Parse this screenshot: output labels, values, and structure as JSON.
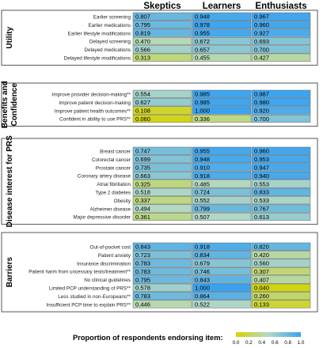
{
  "chart_data": {
    "type": "heatmap",
    "columns": [
      "Skeptics",
      "Learners",
      "Enthusiasts"
    ],
    "groups": [
      {
        "name": "Utility",
        "rows": [
          {
            "label": "Earlier screening",
            "values": [
              0.807,
              0.948,
              0.967
            ]
          },
          {
            "label": "Earlier medications",
            "values": [
              0.795,
              0.978,
              0.96
            ]
          },
          {
            "label": "Earlier lifestyle modifications",
            "values": [
              0.819,
              0.955,
              0.927
            ]
          },
          {
            "label": "Delayed screening",
            "values": [
              0.47,
              0.672,
              0.693
            ]
          },
          {
            "label": "Delayed medications",
            "values": [
              0.566,
              0.657,
              0.7
            ]
          },
          {
            "label": "Delayed lifestyle modifications",
            "values": [
              0.313,
              0.455,
              0.427
            ]
          }
        ]
      },
      {
        "name": "Benefits and Confidence",
        "rows": [
          {
            "label": "Improve provider decision-making**",
            "values": [
              0.554,
              0.985,
              0.987
            ]
          },
          {
            "label": "Improve patient decision-making",
            "values": [
              0.627,
              0.985,
              0.98
            ]
          },
          {
            "label": "Improve patient health outcomes**",
            "values": [
              0.108,
              1.0,
              0.92
            ]
          },
          {
            "label": "Confident in ability to use PRS**",
            "values": [
              0.06,
              0.336,
              0.7
            ]
          }
        ]
      },
      {
        "name": "Disease interest for PRS",
        "rows": [
          {
            "label": "Breast cancer",
            "values": [
              0.747,
              0.955,
              0.96
            ]
          },
          {
            "label": "Colorectal cancer",
            "values": [
              0.699,
              0.948,
              0.953
            ]
          },
          {
            "label": "Prostate cancer",
            "values": [
              0.735,
              0.91,
              0.947
            ]
          },
          {
            "label": "Coronary artery disease",
            "values": [
              0.663,
              0.918,
              0.94
            ]
          },
          {
            "label": "Atrial fibrillation",
            "values": [
              0.325,
              0.485,
              0.553
            ]
          },
          {
            "label": "Type 2 diabetes",
            "values": [
              0.518,
              0.724,
              0.833
            ]
          },
          {
            "label": "Obesity",
            "values": [
              0.337,
              0.552,
              0.533
            ]
          },
          {
            "label": "Alzheimer disease",
            "values": [
              0.494,
              0.799,
              0.767
            ]
          },
          {
            "label": "Major depressive disorder",
            "values": [
              0.361,
              0.507,
              0.613
            ]
          }
        ]
      },
      {
        "name": "Barriers",
        "rows": [
          {
            "label": "Out-of-pocket cost",
            "values": [
              0.843,
              0.918,
              0.82
            ]
          },
          {
            "label": "Patient anxiety",
            "values": [
              0.723,
              0.834,
              0.42
            ]
          },
          {
            "label": "Insurance discrimination",
            "values": [
              0.783,
              0.679,
              0.56
            ]
          },
          {
            "label": "Patient harm from uncessary tests/treatment**",
            "values": [
              0.783,
              0.746,
              0.307
            ]
          },
          {
            "label": "No clinical guidelines",
            "values": [
              0.795,
              0.843,
              0.407
            ]
          },
          {
            "label": "Limited PCP understanding of PRS**",
            "values": [
              0.578,
              1.0,
              0.04
            ]
          },
          {
            "label": "Less studied in non-Europeans**",
            "values": [
              0.783,
              0.864,
              0.26
            ]
          },
          {
            "label": "Insufficient PCP time to explain PRS**",
            "values": [
              0.446,
              0.522,
              0.133
            ]
          }
        ]
      }
    ],
    "legend": {
      "title": "Proportion of respondents endorsing item:",
      "ticks": [
        "0.0",
        "0.2",
        "0.4",
        "0.6",
        "0.8",
        "1.0"
      ],
      "placement": "bottom"
    },
    "color_scale": {
      "low": "#d4d400",
      "mid": "#b2d8c4",
      "high": "#3aa3f0"
    }
  }
}
